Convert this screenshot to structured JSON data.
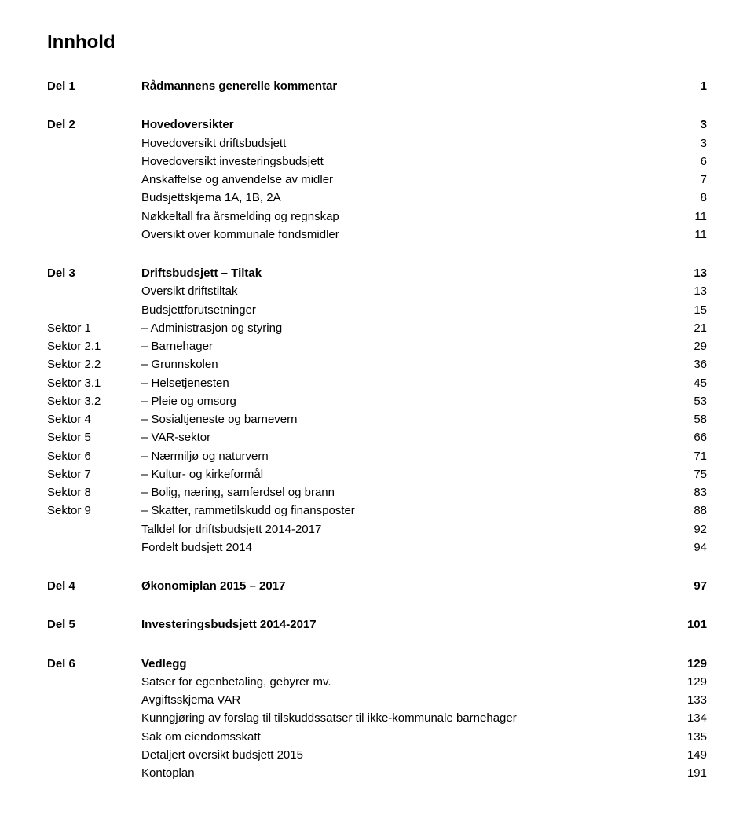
{
  "title": "Innhold",
  "sections": [
    {
      "rows": [
        {
          "label": "Del 1",
          "text": "Rådmannens generelle kommentar",
          "page": "1",
          "bold": true
        }
      ]
    },
    {
      "rows": [
        {
          "label": "Del 2",
          "text": "Hovedoversikter",
          "page": "3",
          "bold": true
        },
        {
          "label": "",
          "text": "Hovedoversikt driftsbudsjett",
          "page": "3",
          "bold": false
        },
        {
          "label": "",
          "text": "Hovedoversikt investeringsbudsjett",
          "page": "6",
          "bold": false
        },
        {
          "label": "",
          "text": "Anskaffelse og anvendelse av midler",
          "page": "7",
          "bold": false
        },
        {
          "label": "",
          "text": "Budsjettskjema 1A, 1B, 2A",
          "page": "8",
          "bold": false
        },
        {
          "label": "",
          "text": "Nøkkeltall fra årsmelding og regnskap",
          "page": "11",
          "bold": false
        },
        {
          "label": "",
          "text": "Oversikt over kommunale fondsmidler",
          "page": "11",
          "bold": false
        }
      ]
    },
    {
      "rows": [
        {
          "label": "Del 3",
          "text": "Driftsbudsjett – Tiltak",
          "page": "13",
          "bold": true
        },
        {
          "label": "",
          "text": "Oversikt driftstiltak",
          "page": "13",
          "bold": false
        },
        {
          "label": "",
          "text": "Budsjettforutsetninger",
          "page": "15",
          "bold": false
        },
        {
          "label": "Sektor 1",
          "text": "– Administrasjon og styring",
          "page": "21",
          "bold": false,
          "sub": true
        },
        {
          "label": "Sektor 2.1",
          "text": "– Barnehager",
          "page": "29",
          "bold": false,
          "sub": true
        },
        {
          "label": "Sektor 2.2",
          "text": "– Grunnskolen",
          "page": "36",
          "bold": false,
          "sub": true
        },
        {
          "label": "Sektor 3.1",
          "text": "– Helsetjenesten",
          "page": "45",
          "bold": false,
          "sub": true
        },
        {
          "label": "Sektor 3.2",
          "text": "– Pleie og omsorg",
          "page": "53",
          "bold": false,
          "sub": true
        },
        {
          "label": "Sektor 4",
          "text": "– Sosialtjeneste og barnevern",
          "page": "58",
          "bold": false,
          "sub": true
        },
        {
          "label": "Sektor 5",
          "text": "– VAR-sektor",
          "page": "66",
          "bold": false,
          "sub": true
        },
        {
          "label": "Sektor 6",
          "text": "– Nærmiljø og naturvern",
          "page": "71",
          "bold": false,
          "sub": true
        },
        {
          "label": "Sektor 7",
          "text": "– Kultur- og kirkeformål",
          "page": "75",
          "bold": false,
          "sub": true
        },
        {
          "label": "Sektor 8",
          "text": "– Bolig, næring, samferdsel og brann",
          "page": "83",
          "bold": false,
          "sub": true
        },
        {
          "label": "Sektor 9",
          "text": "– Skatter, rammetilskudd og finansposter",
          "page": "88",
          "bold": false,
          "sub": true
        },
        {
          "label": "",
          "text": "Talldel for driftsbudsjett 2014-2017",
          "page": "92",
          "bold": false
        },
        {
          "label": "",
          "text": "Fordelt budsjett 2014",
          "page": "94",
          "bold": false
        }
      ]
    },
    {
      "rows": [
        {
          "label": "Del 4",
          "text": "Økonomiplan 2015 – 2017",
          "page": "97",
          "bold": true
        }
      ]
    },
    {
      "rows": [
        {
          "label": "Del 5",
          "text": "Investeringsbudsjett 2014-2017",
          "page": "101",
          "bold": true
        }
      ]
    },
    {
      "rows": [
        {
          "label": "Del 6",
          "text": "Vedlegg",
          "page": "129",
          "bold": true
        },
        {
          "label": "",
          "text": "Satser for egenbetaling, gebyrer mv.",
          "page": "129",
          "bold": false
        },
        {
          "label": "",
          "text": "Avgiftsskjema VAR",
          "page": "133",
          "bold": false
        },
        {
          "label": "",
          "text": "Kunngjøring av forslag til tilskuddssatser til ikke-kommunale barnehager",
          "page": "134",
          "bold": false
        },
        {
          "label": "",
          "text": "Sak om eiendomsskatt",
          "page": "135",
          "bold": false
        },
        {
          "label": "",
          "text": "Detaljert oversikt budsjett 2015",
          "page": "149",
          "bold": false
        },
        {
          "label": "",
          "text": "Kontoplan",
          "page": "191",
          "bold": false
        }
      ]
    }
  ]
}
